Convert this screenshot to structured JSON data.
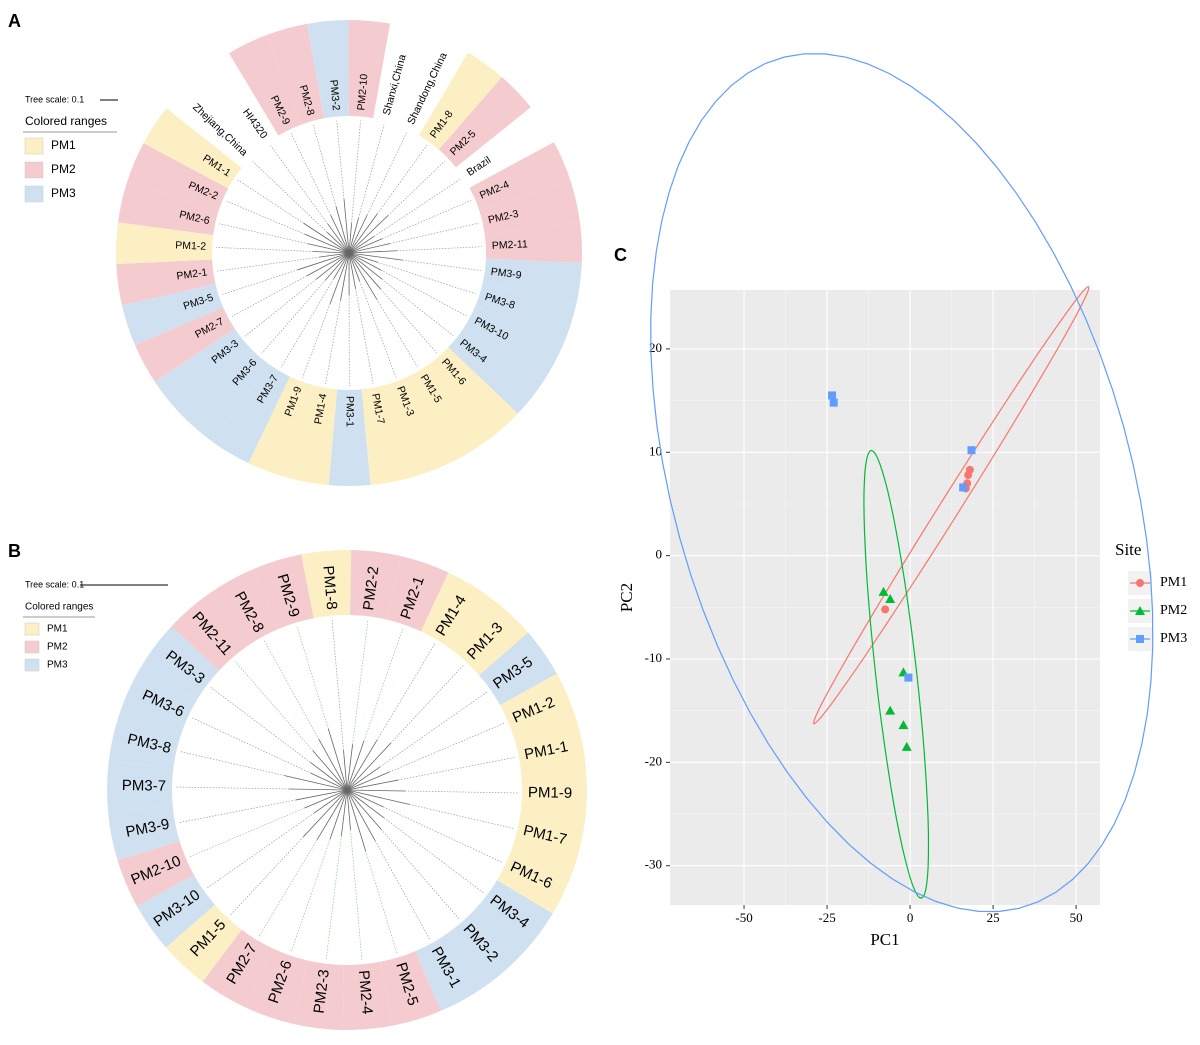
{
  "chart_data": [
    {
      "type": "tree",
      "panel": "A",
      "scale_label": "Tree scale: 0.1",
      "legend_title": "Colored ranges",
      "legend": [
        {
          "name": "PM1",
          "color": "#fcefc4"
        },
        {
          "name": "PM2",
          "color": "#f4cccf"
        },
        {
          "name": "PM3",
          "color": "#cfe1f0"
        }
      ],
      "leaves": [
        {
          "label": "PM2-10",
          "group": "PM2"
        },
        {
          "label": "Shanxi,China",
          "group": null
        },
        {
          "label": "Shandong,China",
          "group": null
        },
        {
          "label": "PM1-8",
          "group": "PM1"
        },
        {
          "label": "PM2-5",
          "group": "PM2"
        },
        {
          "label": "Brazil",
          "group": null
        },
        {
          "label": "PM2-4",
          "group": "PM2"
        },
        {
          "label": "PM2-3",
          "group": "PM2"
        },
        {
          "label": "PM2-11",
          "group": "PM2"
        },
        {
          "label": "PM3-9",
          "group": "PM3"
        },
        {
          "label": "PM3-8",
          "group": "PM3"
        },
        {
          "label": "PM3-10",
          "group": "PM3"
        },
        {
          "label": "PM3-4",
          "group": "PM3"
        },
        {
          "label": "PM1-6",
          "group": "PM1"
        },
        {
          "label": "PM1-5",
          "group": "PM1"
        },
        {
          "label": "PM1-3",
          "group": "PM1"
        },
        {
          "label": "PM1-7",
          "group": "PM1"
        },
        {
          "label": "PM3-1",
          "group": "PM3"
        },
        {
          "label": "PM1-4",
          "group": "PM1"
        },
        {
          "label": "PM1-9",
          "group": "PM1"
        },
        {
          "label": "PM3-7",
          "group": "PM3"
        },
        {
          "label": "PM3-6",
          "group": "PM3"
        },
        {
          "label": "PM3-3",
          "group": "PM3"
        },
        {
          "label": "PM2-7",
          "group": "PM2"
        },
        {
          "label": "PM3-5",
          "group": "PM3"
        },
        {
          "label": "PM2-1",
          "group": "PM2"
        },
        {
          "label": "PM1-2",
          "group": "PM1"
        },
        {
          "label": "PM2-6",
          "group": "PM2"
        },
        {
          "label": "PM2-2",
          "group": "PM2"
        },
        {
          "label": "PM1-1",
          "group": "PM1"
        },
        {
          "label": "Zhejiang,China",
          "group": null
        },
        {
          "label": "HI4320",
          "group": null
        },
        {
          "label": "PM2-9",
          "group": "PM2"
        },
        {
          "label": "PM2-8",
          "group": "PM2"
        },
        {
          "label": "PM3-2",
          "group": "PM3"
        }
      ]
    },
    {
      "type": "tree",
      "panel": "B",
      "scale_label": "Tree scale: 0.1",
      "legend_title": "Colored ranges",
      "legend": [
        {
          "name": "PM1",
          "color": "#fcefc4"
        },
        {
          "name": "PM2",
          "color": "#f4cccf"
        },
        {
          "name": "PM3",
          "color": "#cfe1f0"
        }
      ],
      "leaves": [
        {
          "label": "PM1-8",
          "group": "PM1"
        },
        {
          "label": "PM2-2",
          "group": "PM2"
        },
        {
          "label": "PM2-1",
          "group": "PM2"
        },
        {
          "label": "PM1-4",
          "group": "PM1"
        },
        {
          "label": "PM1-3",
          "group": "PM1"
        },
        {
          "label": "PM3-5",
          "group": "PM3"
        },
        {
          "label": "PM1-2",
          "group": "PM1"
        },
        {
          "label": "PM1-1",
          "group": "PM1"
        },
        {
          "label": "PM1-9",
          "group": "PM1"
        },
        {
          "label": "PM1-7",
          "group": "PM1"
        },
        {
          "label": "PM1-6",
          "group": "PM1"
        },
        {
          "label": "PM3-4",
          "group": "PM3"
        },
        {
          "label": "PM3-2",
          "group": "PM3"
        },
        {
          "label": "PM3-1",
          "group": "PM3"
        },
        {
          "label": "PM2-5",
          "group": "PM2"
        },
        {
          "label": "PM2-4",
          "group": "PM2"
        },
        {
          "label": "PM2-3",
          "group": "PM2"
        },
        {
          "label": "PM2-6",
          "group": "PM2"
        },
        {
          "label": "PM2-7",
          "group": "PM2"
        },
        {
          "label": "PM1-5",
          "group": "PM1"
        },
        {
          "label": "PM3-10",
          "group": "PM3"
        },
        {
          "label": "PM2-10",
          "group": "PM2"
        },
        {
          "label": "PM3-9",
          "group": "PM3"
        },
        {
          "label": "PM3-7",
          "group": "PM3"
        },
        {
          "label": "PM3-8",
          "group": "PM3"
        },
        {
          "label": "PM3-6",
          "group": "PM3"
        },
        {
          "label": "PM3-3",
          "group": "PM3"
        },
        {
          "label": "PM2-11",
          "group": "PM2"
        },
        {
          "label": "PM2-8",
          "group": "PM2"
        },
        {
          "label": "PM2-9",
          "group": "PM2"
        }
      ]
    },
    {
      "type": "scatter",
      "panel": "C",
      "x_label": "PC1",
      "y_label": "PC2",
      "legend_title": "Site",
      "xlim": [
        -72.3,
        57.2
      ],
      "ylim": [
        -33.8,
        25.7
      ],
      "xticks": [
        -50,
        -25,
        0,
        25,
        50
      ],
      "yticks": [
        -30,
        -20,
        -10,
        0,
        10,
        20
      ],
      "grid": true,
      "ellipse": true,
      "series": [
        {
          "name": "PM1",
          "color": "#f8766d",
          "marker": "circle",
          "x": [
            18,
            17.5,
            17.2,
            16.8,
            -7.5
          ],
          "values": [
            8.3,
            7.8,
            7,
            6.5,
            -5.2
          ]
        },
        {
          "name": "PM2",
          "color": "#00ba38",
          "marker": "triangle",
          "x": [
            -8,
            -6,
            -2,
            -6,
            -2,
            -1
          ],
          "values": [
            -3.5,
            -4.2,
            -11.3,
            -15,
            -16.4,
            -18.5
          ]
        },
        {
          "name": "PM3",
          "color": "#619cff",
          "marker": "square",
          "x": [
            -23.5,
            -23,
            18.5,
            16,
            -0.5
          ],
          "values": [
            15.5,
            14.8,
            10.2,
            6.6,
            -11.8
          ]
        }
      ]
    }
  ]
}
